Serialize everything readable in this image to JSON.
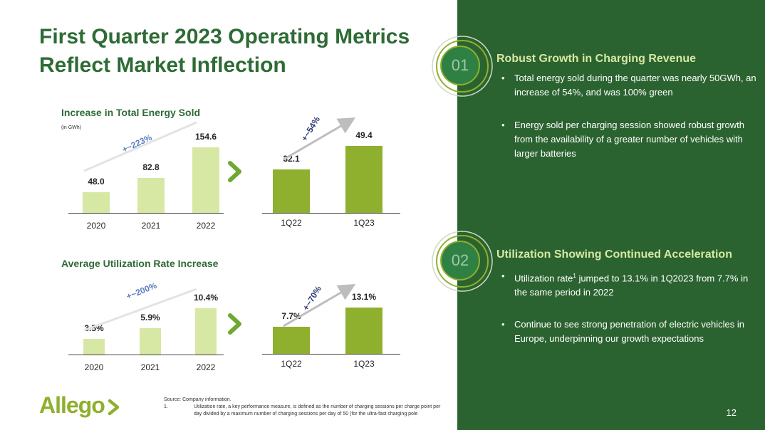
{
  "slide": {
    "title": "First Quarter 2023 Operating Metrics Reflect Market Inflection",
    "page_number": "12"
  },
  "colors": {
    "brand_green": "#2e6b35",
    "panel_green": "#2b6330",
    "light_bar": "#d6e8a3",
    "dark_bar": "#8fb02e"
  },
  "chart_data": [
    {
      "type": "bar",
      "title": "Increase in Total Energy Sold",
      "unit_note": "(in GWh)",
      "categories": [
        "2020",
        "2021",
        "2022"
      ],
      "values": [
        48.0,
        82.8,
        154.6
      ],
      "value_labels": [
        "48.0",
        "82.8",
        "154.6"
      ],
      "growth_label": "+~223%"
    },
    {
      "type": "bar",
      "title": "",
      "categories": [
        "1Q22",
        "1Q23"
      ],
      "values": [
        32.1,
        49.4
      ],
      "value_labels": [
        "32.1",
        "49.4"
      ],
      "growth_label": "+~54%"
    },
    {
      "type": "bar",
      "title": "Average Utilization Rate Increase",
      "categories": [
        "2020",
        "2021",
        "2022"
      ],
      "values": [
        3.5,
        5.9,
        10.4
      ],
      "value_labels": [
        "3.5%",
        "5.9%",
        "10.4%"
      ],
      "growth_label": "+~200%"
    },
    {
      "type": "bar",
      "title": "",
      "categories": [
        "1Q22",
        "1Q23"
      ],
      "values": [
        7.7,
        13.1
      ],
      "value_labels": [
        "7.7%",
        "13.1%"
      ],
      "growth_label": "+~70%"
    }
  ],
  "panel": {
    "sections": [
      {
        "number": "01",
        "heading": "Robust Growth in Charging Revenue",
        "bullets": [
          "Total energy sold during the quarter was nearly 50GWh, an increase of 54%, and was 100% green",
          "Energy sold per charging session showed robust growth from the availability of a greater number of vehicles with larger batteries"
        ]
      },
      {
        "number": "02",
        "heading": "Utilization Showing Continued Acceleration",
        "bullets": [
          {
            "before": "Utilization rate",
            "sup": "1",
            "after": " jumped to 13.1% in 1Q2023 from 7.7% in the same period in 2022"
          },
          "Continue to see strong penetration of electric vehicles in Europe, underpinning our growth expectations"
        ]
      }
    ],
    "bullet_glyph": "•"
  },
  "footer": {
    "source": "Source: Company information.",
    "footnote_number": "1.",
    "footnote": "Utilization rate, a key performance measure, is defined as the number of charging sessions per charge point per day divided by a maximum number of charging sessions per day of 50 (for the ultra-fast charging pole",
    "logo_text": "Allego"
  }
}
